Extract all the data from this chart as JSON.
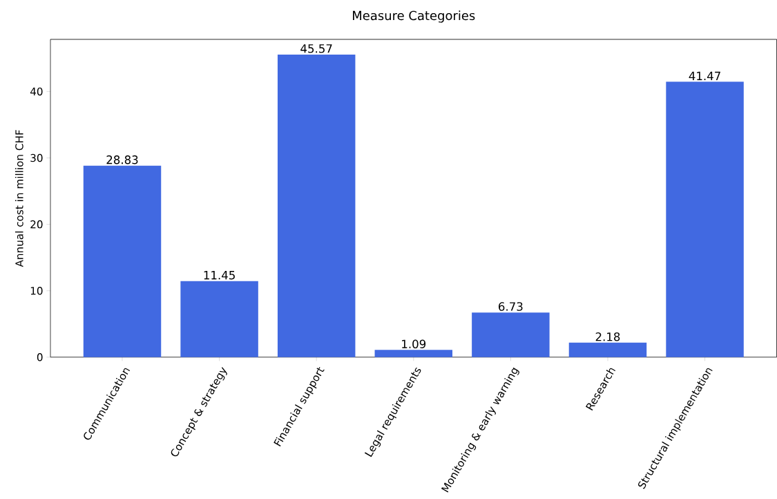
{
  "chart_data": {
    "type": "bar",
    "title": "Measure Categories",
    "ylabel": "Annual cost in million CHF",
    "categories": [
      "Communication",
      "Concept & strategy",
      "Financial support",
      "Legal requirements",
      "Monitoring & early warning",
      "Research",
      "Structural implementation"
    ],
    "values": [
      28.83,
      11.45,
      45.57,
      1.09,
      6.73,
      2.18,
      41.47
    ],
    "color": "#4169e1",
    "ylim": [
      0,
      47.85
    ],
    "yticks": [
      0,
      10,
      20,
      30,
      40
    ],
    "data_labels": true
  }
}
